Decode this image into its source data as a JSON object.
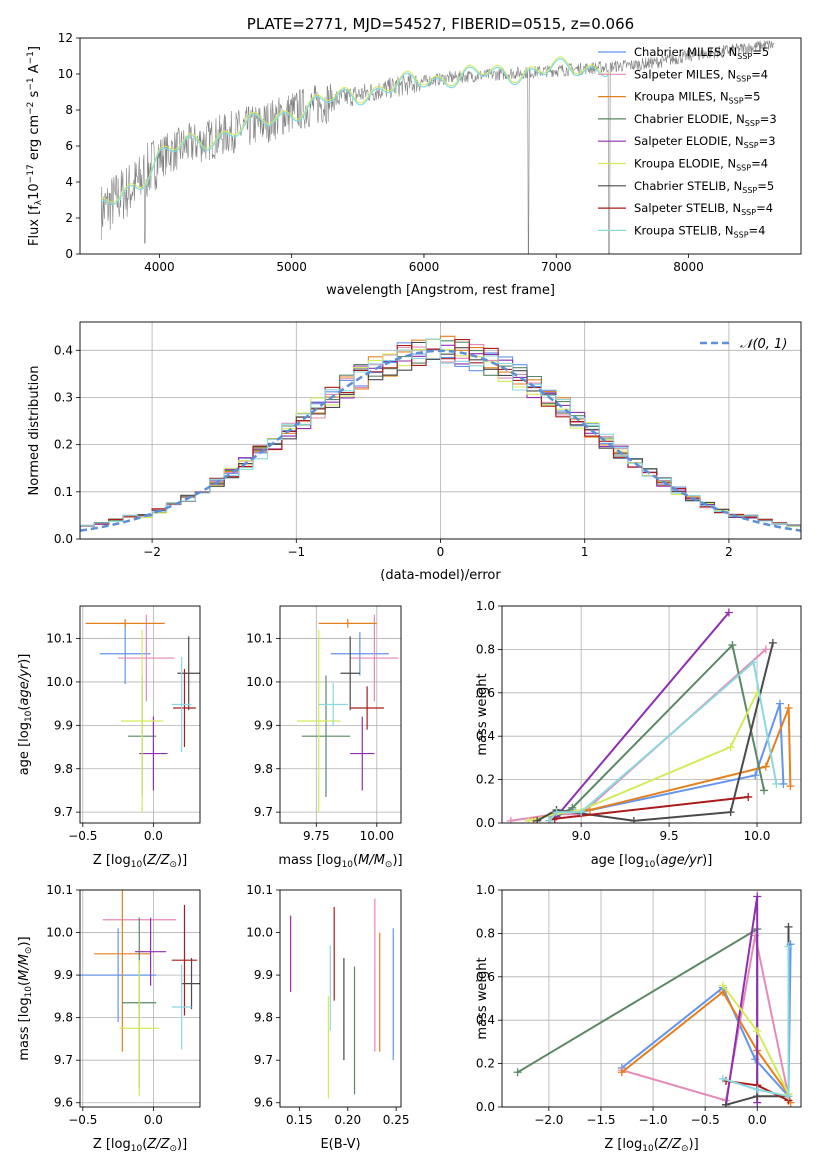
{
  "series_colors": [
    "#6495ed",
    "#e68ab8",
    "#e5801e",
    "#5b8765",
    "#8e2fb1",
    "#d5ea5b",
    "#4a4a4a",
    "#aa1c1c",
    "#8bd8df"
  ],
  "spectrum_colors": {
    "data": "#808080",
    "model": "#7fdde4",
    "model_alt": "#e5801e",
    "model_alt2": "#d5ea5b"
  },
  "chart_data": [
    {
      "id": "spectrum",
      "type": "line",
      "title": "PLATE=2771, MJD=54527, FIBERID=0515, z=0.066",
      "xlabel": "wavelength [Angstrom, rest frame]",
      "ylabel": "Flux [f_λ10^-17 erg cm^-2 s^-1 A^-1]",
      "xlim": [
        3400,
        8850
      ],
      "ylim": [
        0,
        12
      ],
      "xticks": [
        4000,
        5000,
        6000,
        7000,
        8000
      ],
      "yticks": [
        0,
        2,
        4,
        6,
        8,
        10,
        12
      ],
      "grid": false,
      "legend_position": "right",
      "legend": [
        {
          "label": "Chabrier MILES, N",
          "sub": "SSP",
          "suffix": "=5"
        },
        {
          "label": "Salpeter MILES, N",
          "sub": "SSP",
          "suffix": "=4"
        },
        {
          "label": "Kroupa MILES, N",
          "sub": "SSP",
          "suffix": "=5"
        },
        {
          "label": "Chabrier ELODIE, N",
          "sub": "SSP",
          "suffix": "=3"
        },
        {
          "label": "Salpeter ELODIE, N",
          "sub": "SSP",
          "suffix": "=3"
        },
        {
          "label": "Kroupa ELODIE, N",
          "sub": "SSP",
          "suffix": "=4"
        },
        {
          "label": "Chabrier STELIB, N",
          "sub": "SSP",
          "suffix": "=5"
        },
        {
          "label": "Salpeter STELIB, N",
          "sub": "SSP",
          "suffix": "=4"
        },
        {
          "label": "Kroupa STELIB, N",
          "sub": "SSP",
          "suffix": "=4"
        }
      ],
      "continuum": {
        "x": [
          3550,
          3700,
          3850,
          4000,
          4200,
          4400,
          4600,
          4800,
          5000,
          5200,
          5400,
          5600,
          5800,
          6000,
          6200,
          6400,
          6600,
          6800,
          7000,
          7200,
          7400,
          7600,
          7800,
          8000,
          8200,
          8400,
          8600
        ],
        "y": [
          2.3,
          3.2,
          4.0,
          5.4,
          6.0,
          6.4,
          6.9,
          7.3,
          7.9,
          8.3,
          8.7,
          9.0,
          9.3,
          9.6,
          9.8,
          9.9,
          10.0,
          10.1,
          10.2,
          10.3,
          10.4,
          10.5,
          10.7,
          11.0,
          11.2,
          11.4,
          11.6
        ]
      },
      "model_end": 7400,
      "dips": [
        {
          "x": 6790,
          "y": 0.0
        },
        {
          "x": 7400,
          "y": 0.0
        },
        {
          "x": 3890,
          "y": 0.6
        }
      ]
    },
    {
      "id": "residuals",
      "type": "line",
      "xlabel": "(data-model)/error",
      "ylabel": "Normed distribution",
      "xlim": [
        -2.5,
        2.5
      ],
      "ylim": [
        0,
        0.46
      ],
      "xticks": [
        -2,
        -1,
        0,
        1,
        2
      ],
      "xticklabels": [
        "−2",
        "−1",
        "0",
        "1",
        "2"
      ],
      "yticks": [
        0.0,
        0.1,
        0.2,
        0.3,
        0.4
      ],
      "yticklabels": [
        "0.0",
        "0.1",
        "0.2",
        "0.3",
        "0.4"
      ],
      "grid": true,
      "legend": [
        {
          "label": "𝒩(0, 1)",
          "style": "dashed",
          "color": "#5b8fd8"
        }
      ],
      "legend_position": "top-right",
      "bin_width": 0.1
    },
    {
      "id": "age_vs_z",
      "type": "errorbar",
      "xlabel": "Z [log10(Z/Z⊙)]",
      "ylabel": "age  [log10(age/yr)]",
      "xlim": [
        -0.52,
        0.33
      ],
      "ylim": [
        9.675,
        10.175
      ],
      "xticks": [
        -0.5,
        0.0
      ],
      "xticklabels": [
        "−0.5",
        "0.0"
      ],
      "yticks": [
        9.7,
        9.8,
        9.9,
        10.0,
        10.1
      ],
      "yticklabels": [
        "9.7",
        "9.8",
        "9.9",
        "10.0",
        "10.1"
      ],
      "grid": true,
      "points": [
        {
          "x": -0.2,
          "xerr": 0.18,
          "y": 10.065,
          "yerr": 0.07
        },
        {
          "x": -0.05,
          "xerr": 0.2,
          "y": 10.055,
          "yerr": 0.1
        },
        {
          "x": -0.2,
          "xerr": 0.28,
          "y": 10.135,
          "yerr": 0.01
        },
        {
          "x": -0.08,
          "xerr": 0.1,
          "y": 9.875,
          "yerr": 0.14
        },
        {
          "x": 0.0,
          "xerr": 0.1,
          "y": 9.835,
          "yerr": 0.085
        },
        {
          "x": -0.08,
          "xerr": 0.15,
          "y": 9.91,
          "yerr": 0.21
        },
        {
          "x": 0.25,
          "xerr": 0.08,
          "y": 10.02,
          "yerr": 0.085
        },
        {
          "x": 0.22,
          "xerr": 0.08,
          "y": 9.94,
          "yerr": 0.09
        },
        {
          "x": 0.2,
          "xerr": 0.07,
          "y": 9.948,
          "yerr": 0.11
        }
      ]
    },
    {
      "id": "age_vs_mass",
      "type": "errorbar",
      "xlabel": "mass [log10(M/M⊙)]",
      "ylabel": "",
      "xlim": [
        9.6,
        10.1
      ],
      "ylim": [
        9.675,
        10.175
      ],
      "xticks": [
        9.75,
        10.0
      ],
      "xticklabels": [
        "9.75",
        "10.00"
      ],
      "yticks": [
        9.7,
        9.8,
        9.9,
        10.0,
        10.1
      ],
      "yticklabels": [
        "9.7",
        "9.8",
        "9.9",
        "10.0",
        "10.1"
      ],
      "grid": true,
      "points": [
        {
          "x": 9.93,
          "xerr": 0.12,
          "y": 10.065,
          "yerr": 0.05
        },
        {
          "x": 9.99,
          "xerr": 0.1,
          "y": 10.055,
          "yerr": 0.1
        },
        {
          "x": 9.88,
          "xerr": 0.12,
          "y": 10.135,
          "yerr": 0.01
        },
        {
          "x": 9.79,
          "xerr": 0.1,
          "y": 9.875,
          "yerr": 0.14
        },
        {
          "x": 9.94,
          "xerr": 0.05,
          "y": 9.835,
          "yerr": 0.085
        },
        {
          "x": 9.76,
          "xerr": 0.09,
          "y": 9.91,
          "yerr": 0.21
        },
        {
          "x": 9.89,
          "xerr": 0.04,
          "y": 10.02,
          "yerr": 0.085
        },
        {
          "x": 9.96,
          "xerr": 0.07,
          "y": 9.94,
          "yerr": 0.05
        },
        {
          "x": 9.82,
          "xerr": 0.06,
          "y": 9.948,
          "yerr": 0.05
        }
      ]
    },
    {
      "id": "massweight_vs_age",
      "type": "line",
      "xlabel": "age  [log10(age/yr)]",
      "ylabel": "mass weight",
      "xlim": [
        8.55,
        10.25
      ],
      "ylim": [
        0,
        1.0
      ],
      "xticks": [
        9.0,
        9.5,
        10.0
      ],
      "xticklabels": [
        "9.0",
        "9.5",
        "10.0"
      ],
      "yticks": [
        0.0,
        0.2,
        0.4,
        0.6,
        0.8,
        1.0
      ],
      "yticklabels": [
        "0.0",
        "0.2",
        "0.4",
        "0.6",
        "0.8",
        "1.0"
      ],
      "grid": true,
      "series": [
        {
          "x": [
            8.82,
            8.95,
            9.0,
            9.99,
            10.13,
            10.15
          ],
          "y": [
            0.03,
            0.06,
            0.05,
            0.22,
            0.55,
            0.18
          ]
        },
        {
          "x": [
            8.6,
            8.85,
            9.0,
            10.05
          ],
          "y": [
            0.01,
            0.04,
            0.04,
            0.8
          ]
        },
        {
          "x": [
            8.73,
            8.86,
            9.05,
            10.05,
            10.18,
            10.19
          ],
          "y": [
            0.01,
            0.05,
            0.06,
            0.26,
            0.53,
            0.17
          ]
        },
        {
          "x": [
            8.82,
            8.95,
            9.86,
            10.04
          ],
          "y": [
            0.01,
            0.07,
            0.82,
            0.15
          ]
        },
        {
          "x": [
            8.82,
            8.86,
            9.84
          ],
          "y": [
            0.01,
            0.03,
            0.97
          ]
        },
        {
          "x": [
            8.7,
            8.85,
            9.0,
            9.85,
            10.0
          ],
          "y": [
            0.01,
            0.04,
            0.06,
            0.35,
            0.6
          ]
        },
        {
          "x": [
            8.75,
            8.86,
            9.3,
            9.85,
            10.09
          ],
          "y": [
            0.01,
            0.06,
            0.01,
            0.05,
            0.83
          ]
        },
        {
          "x": [
            8.82,
            8.85,
            9.95
          ],
          "y": [
            0.01,
            0.02,
            0.12
          ]
        },
        {
          "x": [
            8.82,
            8.86,
            9.0,
            9.98,
            10.11
          ],
          "y": [
            0.01,
            0.05,
            0.05,
            0.74,
            0.18
          ]
        }
      ]
    },
    {
      "id": "mass_vs_z",
      "type": "errorbar",
      "xlabel": "Z [log10(Z/Z⊙)]",
      "ylabel": "mass [log10(M/M⊙)]",
      "xlim": [
        -0.52,
        0.33
      ],
      "ylim": [
        9.59,
        10.1
      ],
      "xticks": [
        -0.5,
        0.0
      ],
      "xticklabels": [
        "−0.5",
        "0.0"
      ],
      "yticks": [
        9.6,
        9.7,
        9.8,
        9.9,
        10.0,
        10.1
      ],
      "yticklabels": [
        "9.6",
        "9.7",
        "9.8",
        "9.9",
        "10.0",
        "10.1"
      ],
      "grid": true,
      "points": [
        {
          "x": -0.25,
          "xerr": 0.27,
          "y": 9.9,
          "yerr": 0.11
        },
        {
          "x": -0.1,
          "xerr": 0.26,
          "y": 10.03,
          "yerr": 0.0
        },
        {
          "x": -0.22,
          "xerr": 0.2,
          "y": 9.95,
          "yerr": 0.23
        },
        {
          "x": -0.1,
          "xerr": 0.12,
          "y": 9.835,
          "yerr": 0.2
        },
        {
          "x": -0.02,
          "xerr": 0.11,
          "y": 9.955,
          "yerr": 0.08
        },
        {
          "x": -0.1,
          "xerr": 0.14,
          "y": 9.775,
          "yerr": 0.16
        },
        {
          "x": 0.27,
          "xerr": 0.07,
          "y": 9.88,
          "yerr": 0.06
        },
        {
          "x": 0.22,
          "xerr": 0.09,
          "y": 9.935,
          "yerr": 0.13
        },
        {
          "x": 0.2,
          "xerr": 0.07,
          "y": 9.825,
          "yerr": 0.1
        }
      ]
    },
    {
      "id": "mass_vs_ebv",
      "type": "errorbar",
      "xlabel": "E(B-V)",
      "ylabel": "",
      "xlim": [
        0.13,
        0.255
      ],
      "ylim": [
        9.59,
        10.1
      ],
      "xticks": [
        0.15,
        0.2,
        0.25
      ],
      "xticklabels": [
        "0.15",
        "0.20",
        "0.25"
      ],
      "yticks": [
        9.6,
        9.7,
        9.8,
        9.9,
        10.0,
        10.1
      ],
      "yticklabels": [
        "9.6",
        "9.7",
        "9.8",
        "9.9",
        "10.0",
        "10.1"
      ],
      "grid": false,
      "points": [
        {
          "x": 0.247,
          "xerr": 0,
          "y": 9.855,
          "yerr": 0.155
        },
        {
          "x": 0.228,
          "xerr": 0,
          "y": 9.9,
          "yerr": 0.18
        },
        {
          "x": 0.233,
          "xerr": 0,
          "y": 9.86,
          "yerr": 0.14
        },
        {
          "x": 0.207,
          "xerr": 0,
          "y": 9.77,
          "yerr": 0.15
        },
        {
          "x": 0.141,
          "xerr": 0,
          "y": 9.95,
          "yerr": 0.09
        },
        {
          "x": 0.18,
          "xerr": 0,
          "y": 9.73,
          "yerr": 0.12
        },
        {
          "x": 0.196,
          "xerr": 0,
          "y": 9.82,
          "yerr": 0.12
        },
        {
          "x": 0.186,
          "xerr": 0,
          "y": 9.95,
          "yerr": 0.11
        },
        {
          "x": 0.182,
          "xerr": 0,
          "y": 9.87,
          "yerr": 0.1
        }
      ]
    },
    {
      "id": "massweight_vs_z",
      "type": "line",
      "xlabel": "Z [log10(Z/Z⊙)]",
      "ylabel": "mass weight",
      "xlim": [
        -2.45,
        0.42
      ],
      "ylim": [
        0,
        1.0
      ],
      "xticks": [
        -2.0,
        -1.5,
        -1.0,
        -0.5,
        0.0
      ],
      "xticklabels": [
        "−2.0",
        "−1.5",
        "−1.0",
        "−0.5",
        "0.0"
      ],
      "yticks": [
        0.0,
        0.2,
        0.4,
        0.6,
        0.8,
        1.0
      ],
      "yticklabels": [
        "0.0",
        "0.2",
        "0.4",
        "0.6",
        "0.8",
        "1.0"
      ],
      "grid": true,
      "series": [
        {
          "x": [
            -1.3,
            -0.33,
            -0.02,
            0.3,
            0.32
          ],
          "y": [
            0.18,
            0.55,
            0.22,
            0.05,
            0.75
          ]
        },
        {
          "x": [
            -1.3,
            -0.3,
            -0.02,
            0.3
          ],
          "y": [
            0.17,
            0.03,
            0.79,
            0.05
          ]
        },
        {
          "x": [
            -1.3,
            -0.33,
            0.0,
            0.3,
            0.32
          ],
          "y": [
            0.16,
            0.53,
            0.26,
            0.06,
            0.02
          ]
        },
        {
          "x": [
            -2.3,
            0.0,
            0.0
          ],
          "y": [
            0.16,
            0.82,
            0.05
          ]
        },
        {
          "x": [
            -0.3,
            0.0,
            0.0
          ],
          "y": [
            0.01,
            0.97,
            0.02
          ]
        },
        {
          "x": [
            -0.33,
            0.0,
            0.3
          ],
          "y": [
            0.56,
            0.35,
            0.06
          ]
        },
        {
          "x": [
            -0.3,
            0.0,
            0.3,
            0.3
          ],
          "y": [
            0.01,
            0.05,
            0.05,
            0.83
          ]
        },
        {
          "x": [
            -0.3,
            0.0,
            0.3
          ],
          "y": [
            0.12,
            0.1,
            0.03
          ]
        },
        {
          "x": [
            -0.33,
            0.0,
            0.3,
            0.3
          ],
          "y": [
            0.13,
            0.08,
            0.05,
            0.74
          ]
        }
      ]
    }
  ]
}
